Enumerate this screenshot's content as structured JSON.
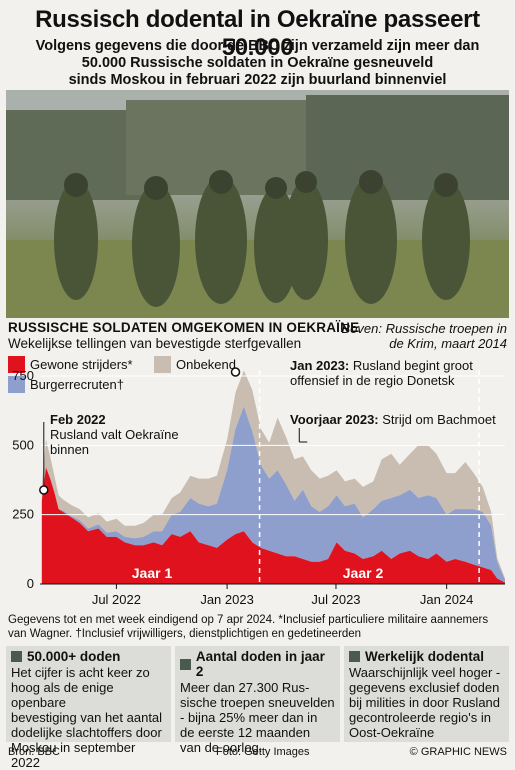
{
  "title": "Russisch dodental in Oekraïne passeert 50.000",
  "subtitle_lines": [
    "Volgens gegevens die door de BBC zijn verzameld zijn meer dan",
    "50.000 Russische soldaten in Oekraïne gesneuveld",
    "sinds Moskou in februari 2022 zijn buurland binnenviel"
  ],
  "photo_caption_lines": [
    "Boven: Russische troepen in",
    "de Krim, maart 2014"
  ],
  "chart_heading": "RUSSISCHE SOLDATEN OMGEKOMEN IN OEKRAÏNE",
  "chart_subheading": "Wekelijkse tellingen van bevestigde sterfgevallen",
  "legend": {
    "gewone": "Gewone strijders*",
    "burger": "Burgerrecruten†",
    "onbekend": "Onbekend"
  },
  "colors": {
    "gewone": "#e0121e",
    "burger": "#8f9fcd",
    "onbekend": "#c9bdb1",
    "grid": "#ffffff"
  },
  "annotations": {
    "feb2022_title": "Feb 2022",
    "feb2022_text_lines": [
      "Rusland valt Oekraïne",
      "binnen"
    ],
    "jan2023_title": "Jan 2023:",
    "jan2023_text_lines": [
      " Rusland begint groot",
      "offensief in de regio Donetsk"
    ],
    "voorjaar_title": "Voorjaar 2023:",
    "voorjaar_text": " Strijd om Bachmoet",
    "jaar1": "Jaar 1",
    "jaar2": "Jaar 2"
  },
  "chart_data": {
    "type": "area",
    "stacked": true,
    "ylim": [
      0,
      750
    ],
    "yticks": [
      0,
      250,
      500,
      750
    ],
    "xtick_labels": [
      "Jul 2022",
      "Jan 2023",
      "Jul 2023",
      "Jan 2024"
    ],
    "x_range": [
      "2022-02-24",
      "2024-04-07"
    ],
    "x": [
      "2022-02-27",
      "2022-03-06",
      "2022-03-13",
      "2022-03-20",
      "2022-03-27",
      "2022-04-03",
      "2022-04-17",
      "2022-05-01",
      "2022-05-15",
      "2022-06-01",
      "2022-06-15",
      "2022-07-01",
      "2022-07-15",
      "2022-08-01",
      "2022-08-15",
      "2022-09-01",
      "2022-09-15",
      "2022-10-01",
      "2022-10-15",
      "2022-11-01",
      "2022-11-15",
      "2022-12-01",
      "2022-12-15",
      "2023-01-01",
      "2023-01-15",
      "2023-01-29",
      "2023-02-12",
      "2023-02-26",
      "2023-03-12",
      "2023-03-26",
      "2023-04-09",
      "2023-04-23",
      "2023-05-07",
      "2023-05-21",
      "2023-06-04",
      "2023-06-18",
      "2023-07-02",
      "2023-07-16",
      "2023-08-01",
      "2023-08-15",
      "2023-09-01",
      "2023-09-15",
      "2023-10-01",
      "2023-10-15",
      "2023-11-01",
      "2023-11-15",
      "2023-12-01",
      "2023-12-15",
      "2024-01-01",
      "2024-01-15",
      "2024-02-01",
      "2024-02-15",
      "2024-03-01",
      "2024-03-15",
      "2024-03-25",
      "2024-04-07"
    ],
    "series": [
      {
        "name": "Gewone strijders*",
        "values": [
          300,
          420,
          380,
          330,
          270,
          260,
          240,
          220,
          190,
          200,
          170,
          170,
          150,
          140,
          140,
          150,
          140,
          180,
          170,
          190,
          150,
          140,
          130,
          160,
          180,
          190,
          150,
          130,
          120,
          110,
          100,
          100,
          90,
          80,
          80,
          90,
          150,
          120,
          110,
          90,
          100,
          120,
          90,
          110,
          120,
          100,
          90,
          110,
          80,
          90,
          80,
          70,
          60,
          50,
          20,
          5
        ]
      },
      {
        "name": "Burgerrecruten†",
        "values": [
          0,
          0,
          0,
          0,
          0,
          5,
          5,
          10,
          10,
          15,
          15,
          20,
          20,
          25,
          30,
          40,
          50,
          70,
          90,
          120,
          140,
          140,
          160,
          250,
          380,
          450,
          400,
          300,
          260,
          300,
          260,
          200,
          250,
          200,
          180,
          190,
          170,
          160,
          180,
          150,
          170,
          180,
          220,
          210,
          220,
          210,
          230,
          200,
          170,
          180,
          190,
          200,
          200,
          160,
          60,
          10
        ]
      },
      {
        "name": "Onbekend",
        "values": [
          60,
          100,
          80,
          60,
          50,
          40,
          40,
          40,
          40,
          40,
          40,
          45,
          40,
          45,
          50,
          60,
          60,
          60,
          70,
          80,
          90,
          100,
          100,
          110,
          130,
          130,
          150,
          130,
          130,
          190,
          170,
          150,
          120,
          130,
          120,
          110,
          90,
          90,
          90,
          110,
          100,
          150,
          160,
          110,
          130,
          190,
          180,
          160,
          150,
          130,
          170,
          130,
          90,
          50,
          15,
          5
        ]
      }
    ]
  },
  "footnote_lines": [
    "Gegevens tot en met week eindigend op 7 apr 2024. *Inclusief particuliere militaire aannemers",
    "van Wagner. †Inclusief vrijwilligers, dienstplichtigen en gedetineerden"
  ],
  "boxes": [
    {
      "title": "50.000+ doden",
      "lines": [
        "Het cijfer is acht keer zo",
        "hoog als de enige openbare",
        "bevestiging van het aantal",
        "dodelijke slachtoffers door",
        "Moskou in september 2022"
      ]
    },
    {
      "title": "Aantal doden in jaar 2",
      "lines": [
        "Meer dan 27.300 Rus-",
        "sische troepen sneuvelden",
        "- bijna 25% meer dan in",
        "de eerste 12 maanden",
        "van de oorlog."
      ]
    },
    {
      "title": "Werkelijk dodental",
      "lines": [
        "Waarschijnlijk veel hoger -",
        "gegevens exclusief doden",
        "bij milities in door Rusland",
        "gecontroleerde regio's in",
        "Oost-Oekraïne"
      ]
    }
  ],
  "footer": {
    "source": "Bron: BBC",
    "photo": "Foto: Getty Images",
    "credit": "© GRAPHIC NEWS"
  }
}
